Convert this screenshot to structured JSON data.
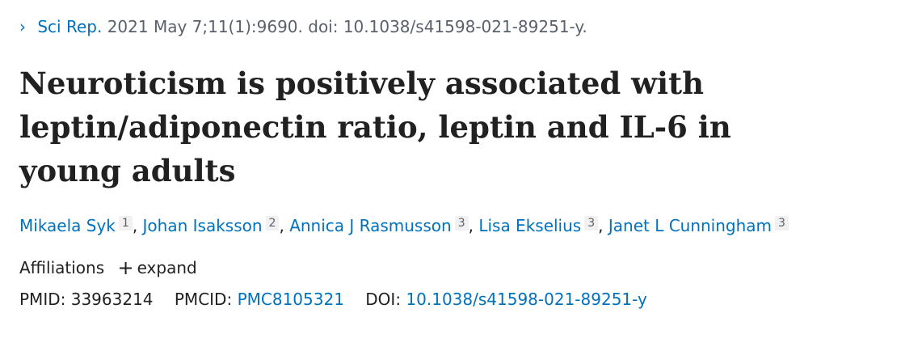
{
  "citation": {
    "chevron_icon": "chevron-right-icon",
    "journal": "Sci Rep.",
    "details": "2021 May 7;11(1):9690. doi: 10.1038/s41598-021-89251-y."
  },
  "title": "Neuroticism is positively associated with leptin/adiponectin ratio, leptin and IL-6 in young adults",
  "authors": [
    {
      "name": "Mikaela Syk",
      "aff": "1"
    },
    {
      "name": "Johan Isaksson",
      "aff": "2"
    },
    {
      "name": "Annica J Rasmusson",
      "aff": "3"
    },
    {
      "name": "Lisa Ekselius",
      "aff": "3"
    },
    {
      "name": "Janet L Cunningham",
      "aff": "3"
    }
  ],
  "author_separator": ",",
  "affiliations": {
    "label": "Affiliations",
    "expand_icon": "plus-icon",
    "expand_label": "expand"
  },
  "identifiers": {
    "pmid_label": "PMID:",
    "pmid": "33963214",
    "pmcid_label": "PMCID:",
    "pmcid": "PMC8105321",
    "doi_label": "DOI:",
    "doi": "10.1038/s41598-021-89251-y"
  },
  "colors": {
    "link": "#0071bc",
    "text": "#212121",
    "muted": "#5b616b",
    "badge_bg": "#f1f1f1"
  }
}
